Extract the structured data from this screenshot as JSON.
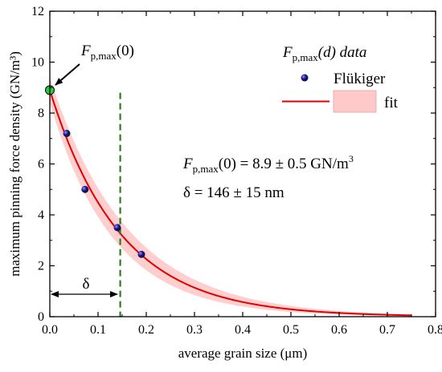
{
  "chart_data": {
    "type": "scatter",
    "xlabel": "average grain size (μm)",
    "ylabel": "maximum pinning force density (GN/m³)",
    "xlim": [
      0.0,
      0.8
    ],
    "ylim": [
      0,
      12
    ],
    "x_ticks": [
      "0.0",
      "0.1",
      "0.2",
      "0.3",
      "0.4",
      "0.5",
      "0.6",
      "0.7",
      "0.8"
    ],
    "y_ticks": [
      "0",
      "2",
      "4",
      "6",
      "8",
      "10",
      "12"
    ],
    "grid": false,
    "legend": {
      "position": "top-right",
      "title_main": "F",
      "title_sub": "p,max",
      "title_rest": "(d) data",
      "entries": [
        {
          "label": "Flükiger",
          "kind": "marker"
        },
        {
          "label": "fit",
          "kind": "line-band"
        }
      ]
    },
    "series": [
      {
        "name": "Flükiger",
        "kind": "scatter",
        "color": "#1a1a8c",
        "points": [
          {
            "x": 0.035,
            "y": 7.2
          },
          {
            "x": 0.073,
            "y": 5.0
          },
          {
            "x": 0.14,
            "y": 3.5
          },
          {
            "x": 0.19,
            "y": 2.45
          }
        ]
      },
      {
        "name": "fit",
        "kind": "line",
        "color": "#e00000",
        "band_color": "#ffb3b3",
        "function": "F0*exp(-x/delta)",
        "F0": 8.9,
        "delta": 0.146,
        "band_F0": [
          8.4,
          9.4
        ],
        "band_delta": [
          0.131,
          0.161
        ],
        "x_range": [
          0.0,
          0.75
        ]
      }
    ],
    "highlight_point": {
      "x": 0.0,
      "y": 8.9,
      "color": "#22cc44"
    },
    "vline": {
      "x": 0.146,
      "color": "#2e7d1e",
      "style": "dashed"
    },
    "annotations": {
      "point_label_main": "F",
      "point_label_sub": "p,max",
      "point_label_rest": "(0)",
      "result_line1_main": "F",
      "result_line1_sub": "p,max",
      "result_line1_rest": "(0) = 8.9 ± 0.5 GN/m",
      "result_line1_sup": "3",
      "result_line2": "δ = 146 ± 15 nm",
      "delta_label": "δ"
    }
  }
}
